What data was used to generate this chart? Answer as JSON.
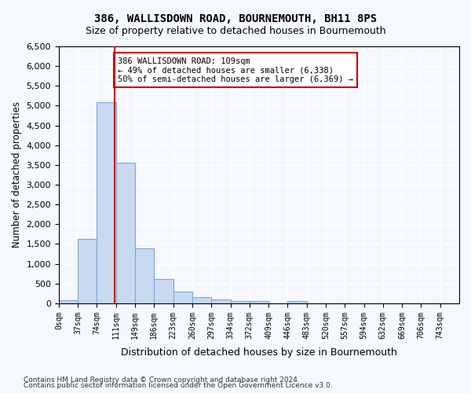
{
  "title1": "386, WALLISDOWN ROAD, BOURNEMOUTH, BH11 8PS",
  "title2": "Size of property relative to detached houses in Bournemouth",
  "xlabel": "Distribution of detached houses by size in Bournemouth",
  "ylabel": "Number of detached properties",
  "bin_labels": [
    "0sqm",
    "37sqm",
    "74sqm",
    "111sqm",
    "149sqm",
    "186sqm",
    "223sqm",
    "260sqm",
    "297sqm",
    "334sqm",
    "372sqm",
    "409sqm",
    "446sqm",
    "483sqm",
    "520sqm",
    "557sqm",
    "594sqm",
    "632sqm",
    "669sqm",
    "706sqm",
    "743sqm"
  ],
  "bar_values": [
    75,
    1620,
    5080,
    3560,
    1400,
    620,
    300,
    150,
    100,
    65,
    50,
    0,
    55,
    0,
    0,
    0,
    0,
    0,
    0,
    0,
    0
  ],
  "bar_color": "#c8d9f0",
  "bar_edge_color": "#7aa8d8",
  "property_line_x": 109,
  "property_line_label": "386 WALLISDOWN ROAD: 109sqm",
  "annotation_line1": "← 49% of detached houses are smaller (6,338)",
  "annotation_line2": "50% of semi-detached houses are larger (6,369) →",
  "vline_color": "#cc0000",
  "ylim": [
    0,
    6500
  ],
  "yticks": [
    0,
    500,
    1000,
    1500,
    2000,
    2500,
    3000,
    3500,
    4000,
    4500,
    5000,
    5500,
    6000,
    6500
  ],
  "footer1": "Contains HM Land Registry data © Crown copyright and database right 2024.",
  "footer2": "Contains public sector information licensed under the Open Government Licence v3.0.",
  "bg_color": "#f5f8ff",
  "grid_color": "#ffffff",
  "bin_width": 37
}
